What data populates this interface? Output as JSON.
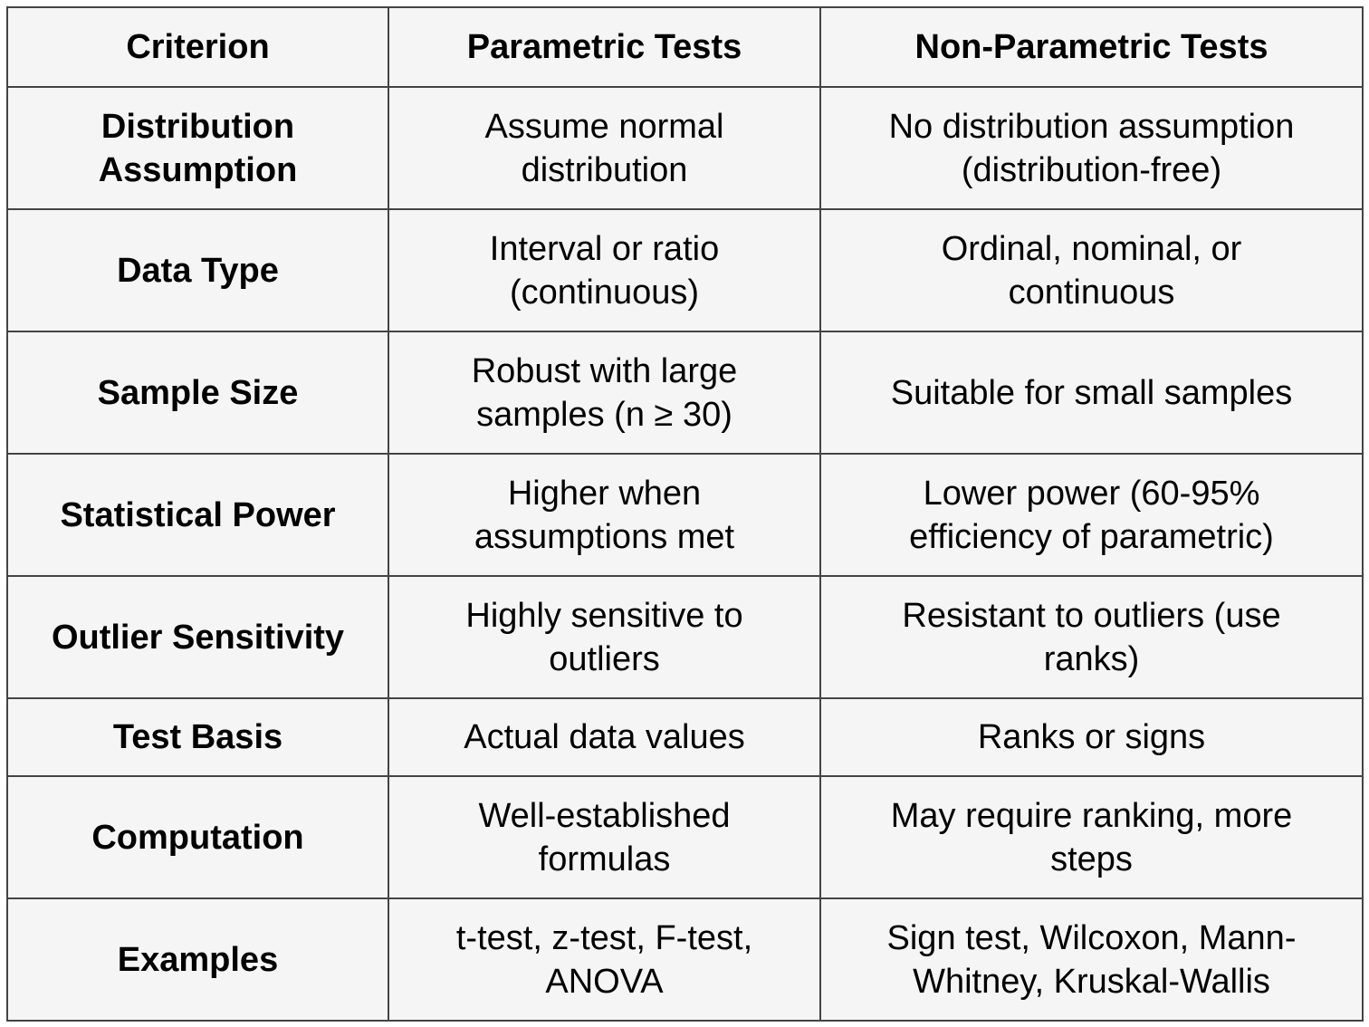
{
  "table": {
    "headers": [
      "Criterion",
      "Parametric Tests",
      "Non-Parametric Tests"
    ],
    "rows": [
      {
        "criterion": "Distribution Assumption",
        "parametric": "Assume normal distribution",
        "nonparametric": "No distribution assumption (distribution-free)"
      },
      {
        "criterion": "Data Type",
        "parametric": "Interval or ratio (continuous)",
        "nonparametric": "Ordinal, nominal, or continuous"
      },
      {
        "criterion": "Sample Size",
        "parametric": "Robust with large samples (n ≥ 30)",
        "nonparametric": "Suitable for small samples"
      },
      {
        "criterion": "Statistical Power",
        "parametric": "Higher when assumptions met",
        "nonparametric": "Lower power (60-95% efficiency of parametric)"
      },
      {
        "criterion": "Outlier Sensitivity",
        "parametric": "Highly sensitive to outliers",
        "nonparametric": "Resistant to outliers (use ranks)"
      },
      {
        "criterion": "Test Basis",
        "parametric": "Actual data values",
        "nonparametric": "Ranks or signs"
      },
      {
        "criterion": "Computation",
        "parametric": "Well-established formulas",
        "nonparametric": "May require ranking, more steps"
      },
      {
        "criterion": "Examples",
        "parametric": "t-test, z-test, F-test, ANOVA",
        "nonparametric": "Sign test, Wilcoxon, Mann-Whitney, Kruskal-Wallis"
      }
    ]
  }
}
